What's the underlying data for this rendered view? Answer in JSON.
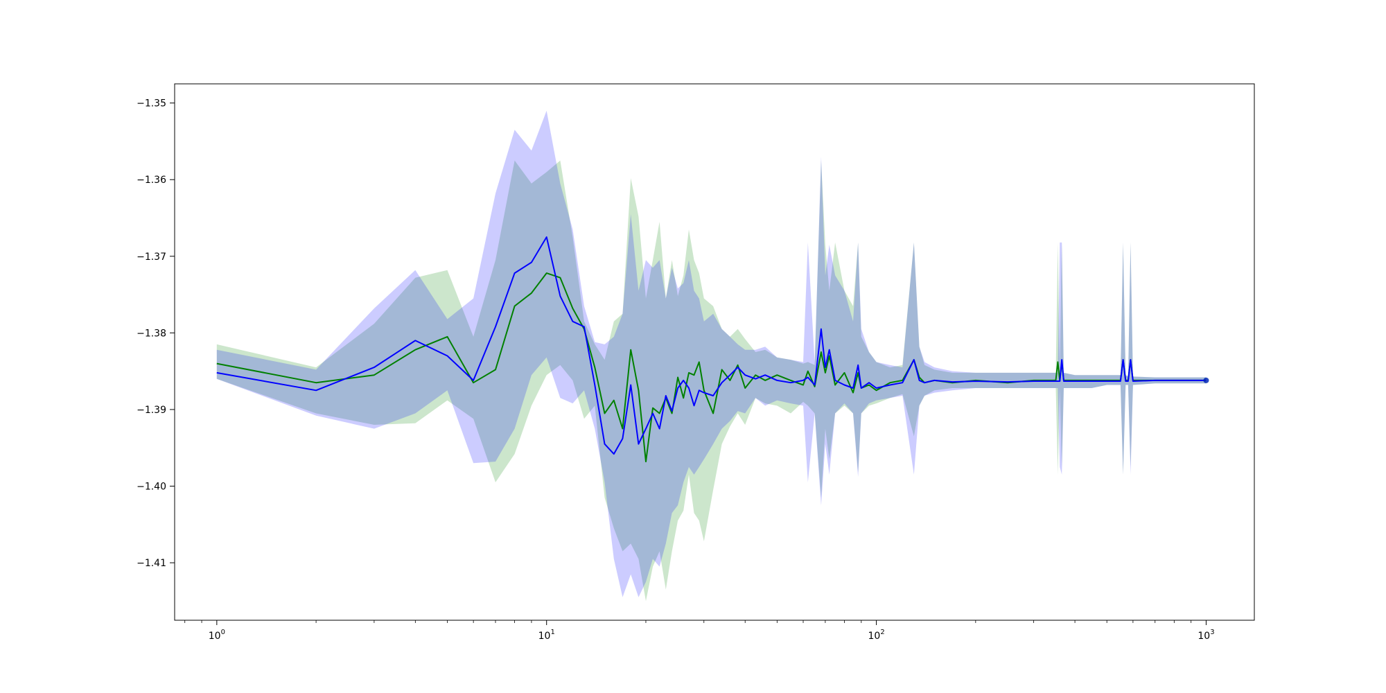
{
  "chart_data": {
    "type": "line",
    "xscale": "log",
    "xlim": [
      0.745,
      1400
    ],
    "ylim": [
      -1.4175,
      -1.3475
    ],
    "grid": false,
    "legend": "none",
    "x_ticks": [
      {
        "value": 1,
        "base": "10",
        "exp": "0"
      },
      {
        "value": 10,
        "base": "10",
        "exp": "1"
      },
      {
        "value": 100,
        "base": "10",
        "exp": "2"
      },
      {
        "value": 1000,
        "base": "10",
        "exp": "3"
      }
    ],
    "y_ticks": [
      {
        "value": -1.35,
        "label": "−1.35"
      },
      {
        "value": -1.36,
        "label": "−1.36"
      },
      {
        "value": -1.37,
        "label": "−1.37"
      },
      {
        "value": -1.38,
        "label": "−1.38"
      },
      {
        "value": -1.39,
        "label": "−1.39"
      },
      {
        "value": -1.4,
        "label": "−1.40"
      },
      {
        "value": -1.41,
        "label": "−1.41"
      }
    ],
    "series": [
      {
        "color": "#008000",
        "band_color": "#008000",
        "band_alpha": 0.2,
        "x": [
          1,
          2,
          3,
          4,
          5,
          6,
          7,
          8,
          9,
          10,
          11,
          12,
          13,
          14,
          15,
          16,
          17,
          18,
          19,
          20,
          21,
          22,
          23,
          24,
          25,
          26,
          27,
          28,
          29,
          30,
          32,
          34,
          36,
          38,
          40,
          43,
          46,
          50,
          55,
          60,
          62,
          65,
          68,
          70,
          72,
          75,
          80,
          85,
          88,
          90,
          95,
          100,
          110,
          120,
          130,
          135,
          140,
          150,
          170,
          200,
          250,
          300,
          350,
          355,
          360,
          365,
          370,
          400,
          450,
          500,
          550,
          560,
          570,
          580,
          590,
          600,
          700,
          800,
          900,
          1000
        ],
        "y": [
          -1.384,
          -1.3865,
          -1.3855,
          -1.3822,
          -1.3805,
          -1.3865,
          -1.3848,
          -1.3765,
          -1.3748,
          -1.3722,
          -1.3728,
          -1.3768,
          -1.3795,
          -1.3845,
          -1.3905,
          -1.3888,
          -1.3925,
          -1.3822,
          -1.3875,
          -1.3968,
          -1.3898,
          -1.3905,
          -1.3885,
          -1.3905,
          -1.3858,
          -1.3885,
          -1.3852,
          -1.3855,
          -1.3838,
          -1.3875,
          -1.3905,
          -1.3848,
          -1.3862,
          -1.3842,
          -1.3872,
          -1.3855,
          -1.3862,
          -1.3855,
          -1.3862,
          -1.3868,
          -1.385,
          -1.387,
          -1.3825,
          -1.3852,
          -1.383,
          -1.3868,
          -1.3852,
          -1.3878,
          -1.3852,
          -1.3872,
          -1.3868,
          -1.3875,
          -1.3865,
          -1.3862,
          -1.3835,
          -1.3858,
          -1.3865,
          -1.3862,
          -1.3865,
          -1.3862,
          -1.3865,
          -1.3862,
          -1.3862,
          -1.3838,
          -1.3862,
          -1.3838,
          -1.3862,
          -1.3862,
          -1.3862,
          -1.3862,
          -1.3862,
          -1.3835,
          -1.3862,
          -1.3862,
          -1.3835,
          -1.3862,
          -1.3862,
          -1.3862,
          -1.3862,
          -1.3862
        ],
        "lower": [
          -1.386,
          -1.3905,
          -1.392,
          -1.3918,
          -1.3888,
          -1.3912,
          -1.3995,
          -1.3958,
          -1.3895,
          -1.3855,
          -1.3842,
          -1.3862,
          -1.3912,
          -1.3895,
          -1.4015,
          -1.4055,
          -1.4085,
          -1.4075,
          -1.4095,
          -1.415,
          -1.4105,
          -1.4085,
          -1.4135,
          -1.4085,
          -1.4045,
          -1.4032,
          -1.3985,
          -1.4035,
          -1.4045,
          -1.4072,
          -1.4005,
          -1.3945,
          -1.3922,
          -1.3905,
          -1.392,
          -1.3885,
          -1.3892,
          -1.3895,
          -1.3905,
          -1.389,
          -1.3895,
          -1.3905,
          -1.4015,
          -1.3925,
          -1.3965,
          -1.3905,
          -1.3895,
          -1.3905,
          -1.3982,
          -1.3905,
          -1.3895,
          -1.3892,
          -1.3885,
          -1.388,
          -1.3935,
          -1.3895,
          -1.3882,
          -1.3875,
          -1.3872,
          -1.3872,
          -1.3872,
          -1.3872,
          -1.3872,
          -1.3985,
          -1.3872,
          -1.3975,
          -1.3872,
          -1.3872,
          -1.3872,
          -1.3868,
          -1.3868,
          -1.3985,
          -1.3868,
          -1.3868,
          -1.3975,
          -1.3868,
          -1.3866,
          -1.3866,
          -1.3866,
          -1.3866
        ],
        "upper": [
          -1.3815,
          -1.3845,
          -1.3788,
          -1.3728,
          -1.3718,
          -1.3805,
          -1.3705,
          -1.3575,
          -1.3605,
          -1.359,
          -1.3575,
          -1.3675,
          -1.3785,
          -1.3815,
          -1.3835,
          -1.3785,
          -1.3775,
          -1.3598,
          -1.3648,
          -1.3755,
          -1.3705,
          -1.3655,
          -1.3755,
          -1.3705,
          -1.3752,
          -1.3725,
          -1.3665,
          -1.3705,
          -1.3722,
          -1.3755,
          -1.3765,
          -1.3795,
          -1.3805,
          -1.3795,
          -1.3808,
          -1.3825,
          -1.3822,
          -1.3832,
          -1.3835,
          -1.384,
          -1.3838,
          -1.3842,
          -1.3575,
          -1.3685,
          -1.3745,
          -1.3682,
          -1.3745,
          -1.3765,
          -1.3682,
          -1.3805,
          -1.3825,
          -1.3838,
          -1.3845,
          -1.3842,
          -1.3682,
          -1.3818,
          -1.3842,
          -1.3848,
          -1.3852,
          -1.3852,
          -1.3852,
          -1.3852,
          -1.3852,
          -1.3682,
          -1.3852,
          -1.3682,
          -1.3852,
          -1.3855,
          -1.3855,
          -1.3855,
          -1.3855,
          -1.3682,
          -1.3855,
          -1.3857,
          -1.3682,
          -1.3857,
          -1.3858,
          -1.3858,
          -1.3858,
          -1.3858
        ]
      },
      {
        "color": "#0000ff",
        "band_color": "#0000ff",
        "band_alpha": 0.2,
        "x": [
          1,
          2,
          3,
          4,
          5,
          6,
          7,
          8,
          9,
          10,
          11,
          12,
          13,
          14,
          15,
          16,
          17,
          18,
          19,
          20,
          21,
          22,
          23,
          24,
          25,
          26,
          27,
          28,
          29,
          30,
          32,
          34,
          36,
          38,
          40,
          43,
          46,
          50,
          55,
          60,
          62,
          65,
          68,
          70,
          72,
          75,
          80,
          85,
          88,
          90,
          95,
          100,
          110,
          120,
          130,
          135,
          140,
          150,
          170,
          200,
          250,
          300,
          350,
          355,
          360,
          365,
          370,
          400,
          450,
          500,
          550,
          560,
          570,
          580,
          590,
          600,
          700,
          800,
          900,
          1000
        ],
        "y": [
          -1.3852,
          -1.3875,
          -1.3845,
          -1.381,
          -1.383,
          -1.3862,
          -1.3792,
          -1.3722,
          -1.3708,
          -1.3675,
          -1.3752,
          -1.3785,
          -1.3792,
          -1.3868,
          -1.3945,
          -1.3958,
          -1.3938,
          -1.3868,
          -1.3945,
          -1.3925,
          -1.3905,
          -1.3925,
          -1.3882,
          -1.3902,
          -1.3872,
          -1.3862,
          -1.3872,
          -1.3895,
          -1.3875,
          -1.3878,
          -1.3882,
          -1.3865,
          -1.3855,
          -1.3845,
          -1.3855,
          -1.386,
          -1.3855,
          -1.3862,
          -1.3865,
          -1.3862,
          -1.3858,
          -1.3868,
          -1.3795,
          -1.3845,
          -1.3822,
          -1.3862,
          -1.3868,
          -1.3872,
          -1.3842,
          -1.3872,
          -1.3865,
          -1.3872,
          -1.3868,
          -1.3865,
          -1.3835,
          -1.3862,
          -1.3865,
          -1.3862,
          -1.3864,
          -1.3863,
          -1.3864,
          -1.3863,
          -1.3863,
          -1.3863,
          -1.3863,
          -1.3835,
          -1.3863,
          -1.3863,
          -1.3863,
          -1.3863,
          -1.3863,
          -1.3835,
          -1.3863,
          -1.3863,
          -1.3835,
          -1.3863,
          -1.3862,
          -1.3862,
          -1.3862,
          -1.3862
        ],
        "lower": [
          -1.386,
          -1.3908,
          -1.3925,
          -1.3905,
          -1.3875,
          -1.397,
          -1.3968,
          -1.3925,
          -1.3855,
          -1.3832,
          -1.3885,
          -1.3892,
          -1.3875,
          -1.3925,
          -1.3995,
          -1.4095,
          -1.4145,
          -1.4115,
          -1.4145,
          -1.4125,
          -1.4095,
          -1.4105,
          -1.4075,
          -1.4035,
          -1.4025,
          -1.3995,
          -1.3975,
          -1.3985,
          -1.3975,
          -1.3965,
          -1.3945,
          -1.3925,
          -1.3915,
          -1.3902,
          -1.3905,
          -1.3885,
          -1.3895,
          -1.3888,
          -1.3892,
          -1.3895,
          -1.3995,
          -1.3905,
          -1.4025,
          -1.3945,
          -1.3985,
          -1.3905,
          -1.3892,
          -1.3905,
          -1.3988,
          -1.3905,
          -1.3892,
          -1.3888,
          -1.3885,
          -1.3882,
          -1.3985,
          -1.3895,
          -1.3882,
          -1.3878,
          -1.3875,
          -1.3872,
          -1.3872,
          -1.3872,
          -1.3872,
          -1.3872,
          -1.3975,
          -1.3985,
          -1.3872,
          -1.3872,
          -1.3872,
          -1.3868,
          -1.3868,
          -1.3985,
          -1.3868,
          -1.3868,
          -1.3985,
          -1.3868,
          -1.3866,
          -1.3866,
          -1.3866,
          -1.3866
        ],
        "upper": [
          -1.3822,
          -1.3848,
          -1.3768,
          -1.3718,
          -1.3782,
          -1.3755,
          -1.3618,
          -1.3535,
          -1.3562,
          -1.351,
          -1.3605,
          -1.3665,
          -1.3765,
          -1.3812,
          -1.3815,
          -1.3805,
          -1.3775,
          -1.3645,
          -1.3745,
          -1.3705,
          -1.3715,
          -1.3705,
          -1.3755,
          -1.3715,
          -1.3742,
          -1.3735,
          -1.3705,
          -1.3745,
          -1.3755,
          -1.3785,
          -1.3775,
          -1.3795,
          -1.3805,
          -1.3815,
          -1.3822,
          -1.3822,
          -1.3818,
          -1.3832,
          -1.3835,
          -1.3838,
          -1.3682,
          -1.3838,
          -1.357,
          -1.3725,
          -1.3685,
          -1.3725,
          -1.3745,
          -1.3785,
          -1.3682,
          -1.3795,
          -1.3825,
          -1.3838,
          -1.3842,
          -1.3845,
          -1.3682,
          -1.3818,
          -1.3838,
          -1.3845,
          -1.385,
          -1.3852,
          -1.3852,
          -1.3852,
          -1.3852,
          -1.3852,
          -1.3682,
          -1.3682,
          -1.3852,
          -1.3855,
          -1.3855,
          -1.3855,
          -1.3855,
          -1.3682,
          -1.3855,
          -1.3857,
          -1.3682,
          -1.3857,
          -1.3858,
          -1.3858,
          -1.3858,
          -1.3858
        ]
      }
    ]
  }
}
